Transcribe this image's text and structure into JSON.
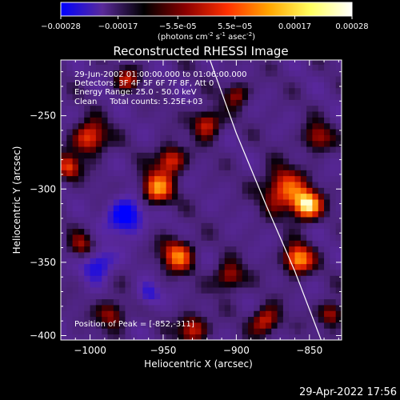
{
  "chart_data": {
    "type": "heatmap",
    "title": "Reconstructed RHESSI Image",
    "xlabel": "Heliocentric X (arcsec)",
    "ylabel": "Heliocentric Y (arcsec)",
    "xlim": [
      -1020,
      -828
    ],
    "ylim": [
      -403,
      -212
    ],
    "xticks": [
      -1000,
      -950,
      -900,
      -850
    ],
    "xtick_labels": [
      "-1000",
      "-950",
      "-900",
      "-850"
    ],
    "yticks": [
      -250,
      -300,
      -350,
      -400
    ],
    "ytick_labels": [
      "-250",
      "-300",
      "-350",
      "-400"
    ],
    "colorbar": {
      "range": [
        -0.00028,
        0.00028
      ],
      "ticks": [
        -0.00028,
        -0.00017,
        -5.5e-05,
        5.5e-05,
        0.00017,
        0.00028
      ],
      "tick_labels": [
        "-0.00028",
        "-0.00017",
        "-5.5e-05",
        "5.5e-05",
        "0.00017",
        "0.00028"
      ],
      "unit_parts": [
        "(photons cm",
        "-2",
        " s",
        "-1",
        " asec",
        "-2",
        ")"
      ],
      "colors": [
        "#0000ff",
        "#5a2a9a",
        "#000000",
        "#8b0000",
        "#ff3000",
        "#ffa500",
        "#ffff60",
        "#ffffff"
      ]
    },
    "annotations": [
      "29-Jun-2002 01:00:00.000 to 01:06:00.000",
      "Detectors: 3F 4F 5F 6F 7F 8F, Att 0",
      "Energy Range: 25.0 - 50.0 keV",
      "Clean     Total counts: 5.25E+03"
    ],
    "peak_label": "Position of Peak = [-852,-311]",
    "peak": [
      -852,
      -311
    ],
    "limb_curve": [
      [
        -918,
        -212
      ],
      [
        -900,
        -262
      ],
      [
        -880,
        -310
      ],
      [
        -860,
        -356
      ],
      [
        -842,
        -403
      ]
    ],
    "sources": [
      {
        "x": -852,
        "y": -311,
        "amp": 1.0,
        "sigma": 7
      },
      {
        "x": -858,
        "y": -348,
        "amp": 0.85,
        "sigma": 7
      },
      {
        "x": -868,
        "y": -300,
        "amp": 0.7,
        "sigma": 10
      },
      {
        "x": -955,
        "y": -300,
        "amp": 0.75,
        "sigma": 8
      },
      {
        "x": -945,
        "y": -280,
        "amp": 0.65,
        "sigma": 7
      },
      {
        "x": -1000,
        "y": -265,
        "amp": 0.7,
        "sigma": 8
      },
      {
        "x": -1015,
        "y": -285,
        "amp": 0.6,
        "sigma": 6
      },
      {
        "x": -920,
        "y": -255,
        "amp": 0.6,
        "sigma": 7
      },
      {
        "x": -940,
        "y": -345,
        "amp": 0.7,
        "sigma": 8
      },
      {
        "x": -905,
        "y": -360,
        "amp": 0.55,
        "sigma": 7
      },
      {
        "x": -930,
        "y": -395,
        "amp": 0.6,
        "sigma": 7
      },
      {
        "x": -985,
        "y": -385,
        "amp": 0.5,
        "sigma": 7
      },
      {
        "x": -880,
        "y": -390,
        "amp": 0.6,
        "sigma": 7
      },
      {
        "x": -835,
        "y": -385,
        "amp": 0.55,
        "sigma": 6
      },
      {
        "x": -845,
        "y": -265,
        "amp": 0.5,
        "sigma": 7
      },
      {
        "x": -1005,
        "y": -340,
        "amp": 0.45,
        "sigma": 7
      },
      {
        "x": -900,
        "y": -235,
        "amp": 0.45,
        "sigma": 6
      },
      {
        "x": -975,
        "y": -225,
        "amp": 0.45,
        "sigma": 6
      },
      {
        "x": -975,
        "y": -318,
        "amp": -0.7,
        "sigma": 9
      },
      {
        "x": -995,
        "y": -350,
        "amp": -0.6,
        "sigma": 8
      },
      {
        "x": -960,
        "y": -372,
        "amp": -0.4,
        "sigma": 6
      }
    ]
  },
  "footer": {
    "date": "29-Apr-2022 17:56"
  }
}
